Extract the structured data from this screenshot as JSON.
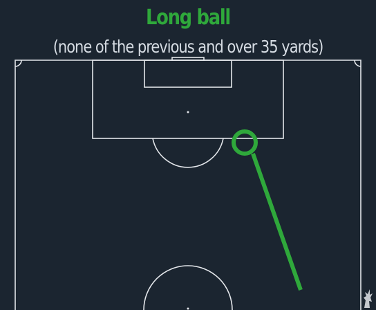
{
  "heading": {
    "title": "Long ball",
    "subtitle": "(none of the previous and over 35 yards)"
  },
  "colors": {
    "background": "#1b2530",
    "accent_green": "#2fa83b",
    "text_light": "#d6dce3",
    "pitch_lines": "#e3e6ea"
  },
  "icons": {
    "crest": "liverbird-crest-icon"
  }
}
